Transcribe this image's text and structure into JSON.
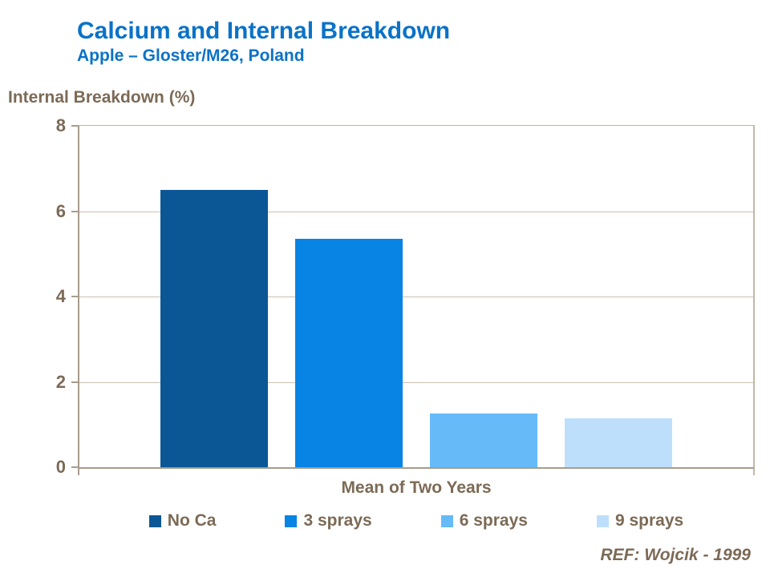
{
  "header": {
    "title": "Calcium and Internal Breakdown",
    "subtitle": "Apple – Gloster/M26, Poland"
  },
  "chart_data": {
    "type": "bar",
    "title": "Calcium and Internal Breakdown",
    "subtitle": "Apple – Gloster/M26, Poland",
    "ylabel": "Internal Breakdown (%)",
    "xlabel": "Mean of Two Years",
    "categories": [
      "Mean of Two Years"
    ],
    "series": [
      {
        "name": "No Ca",
        "values": [
          6.5
        ],
        "color": "#0b5796"
      },
      {
        "name": "3 sprays",
        "values": [
          5.35
        ],
        "color": "#0884e4"
      },
      {
        "name": "6 sprays",
        "values": [
          1.25
        ],
        "color": "#65baf7"
      },
      {
        "name": "9 sprays",
        "values": [
          1.15
        ],
        "color": "#bddffb"
      }
    ],
    "ylim": [
      0,
      8
    ],
    "yticks": [
      0,
      2,
      4,
      6,
      8
    ],
    "grid": true,
    "legend_position": "bottom"
  },
  "footer": {
    "ref": "REF: Wojcik - 1999"
  }
}
